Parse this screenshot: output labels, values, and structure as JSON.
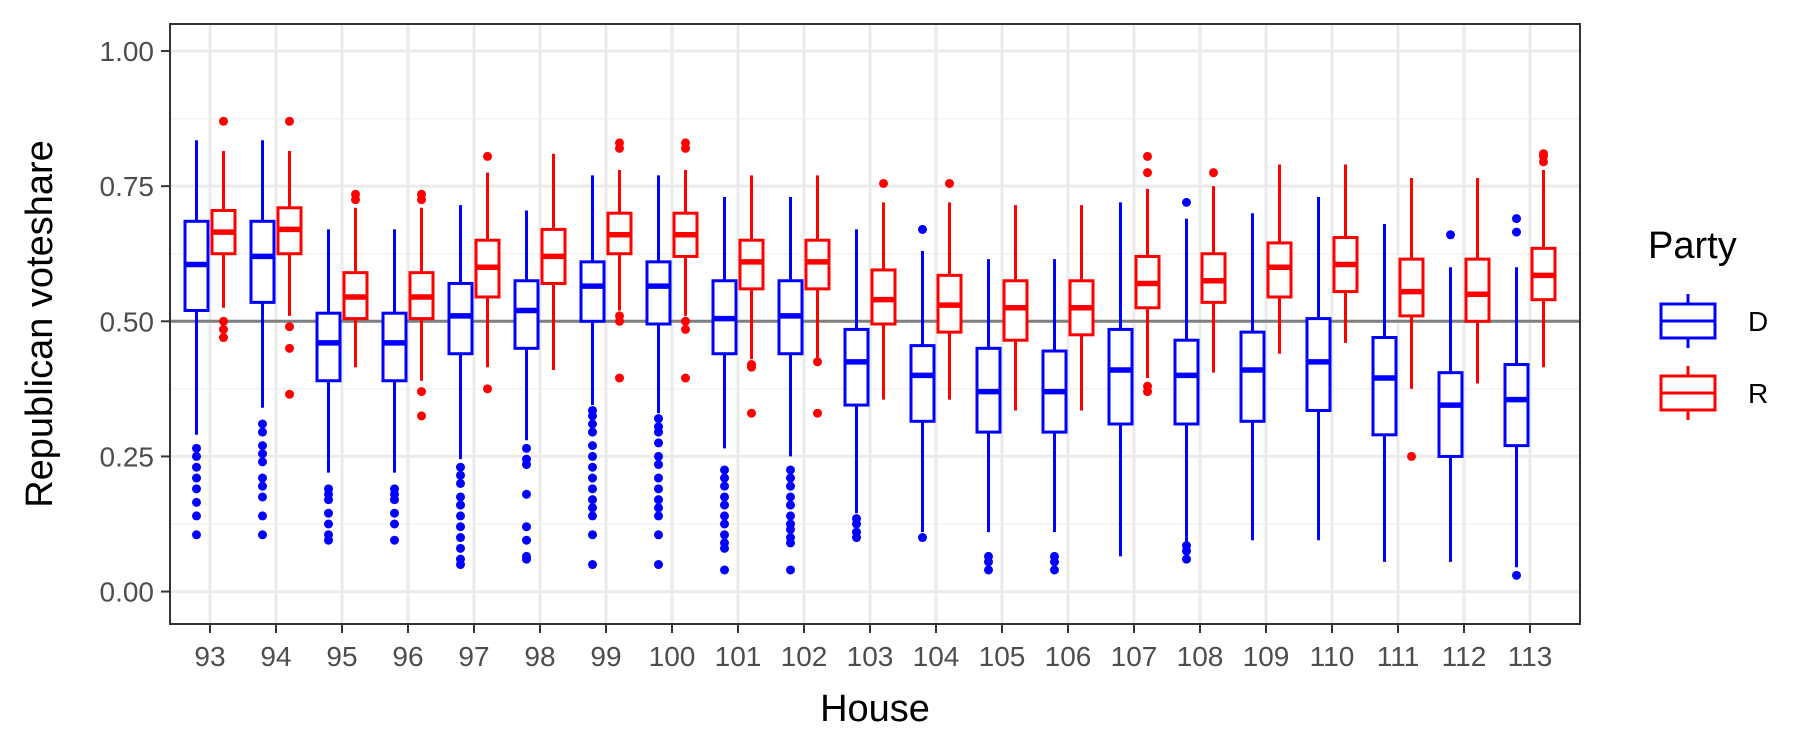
{
  "chart_data": {
    "type": "boxplot",
    "xlabel": "House",
    "ylabel": "Republican voteshare",
    "ylim": [
      -0.06,
      1.05
    ],
    "yticks": [
      "0.00",
      "0.25",
      "0.50",
      "0.75",
      "1.00"
    ],
    "reference_line": 0.5,
    "grid": true,
    "legend": {
      "title": "Party",
      "position": "right",
      "entries": [
        "D",
        "R"
      ]
    },
    "colors": {
      "D": "#0000ff",
      "R": "#ff0000",
      "reference_line": "#7f7f7f"
    },
    "categories": [
      "93",
      "94",
      "95",
      "96",
      "97",
      "98",
      "99",
      "100",
      "101",
      "102",
      "103",
      "104",
      "105",
      "106",
      "107",
      "108",
      "109",
      "110",
      "111",
      "112",
      "113"
    ],
    "series": [
      {
        "name": "D",
        "boxes": [
          {
            "q1": 0.52,
            "median": 0.605,
            "q3": 0.685,
            "lower": 0.29,
            "upper": 0.835,
            "outliers": [
              0.265,
              0.25,
              0.23,
              0.21,
              0.19,
              0.165,
              0.14,
              0.105
            ]
          },
          {
            "q1": 0.535,
            "median": 0.62,
            "q3": 0.685,
            "lower": 0.34,
            "upper": 0.835,
            "outliers": [
              0.31,
              0.295,
              0.27,
              0.255,
              0.24,
              0.21,
              0.195,
              0.175,
              0.14,
              0.105
            ]
          },
          {
            "q1": 0.39,
            "median": 0.46,
            "q3": 0.515,
            "lower": 0.22,
            "upper": 0.67,
            "outliers": [
              0.19,
              0.18,
              0.17,
              0.145,
              0.125,
              0.105,
              0.095
            ]
          },
          {
            "q1": 0.39,
            "median": 0.46,
            "q3": 0.515,
            "lower": 0.22,
            "upper": 0.67,
            "outliers": [
              0.19,
              0.18,
              0.17,
              0.145,
              0.125,
              0.095
            ]
          },
          {
            "q1": 0.44,
            "median": 0.51,
            "q3": 0.57,
            "lower": 0.245,
            "upper": 0.715,
            "outliers": [
              0.23,
              0.215,
              0.2,
              0.175,
              0.16,
              0.14,
              0.12,
              0.1,
              0.08,
              0.06,
              0.05
            ]
          },
          {
            "q1": 0.45,
            "median": 0.52,
            "q3": 0.575,
            "lower": 0.28,
            "upper": 0.705,
            "outliers": [
              0.265,
              0.245,
              0.235,
              0.18,
              0.12,
              0.095,
              0.065,
              0.06
            ]
          },
          {
            "q1": 0.5,
            "median": 0.565,
            "q3": 0.61,
            "lower": 0.345,
            "upper": 0.77,
            "outliers": [
              0.335,
              0.325,
              0.31,
              0.295,
              0.27,
              0.25,
              0.23,
              0.21,
              0.19,
              0.17,
              0.155,
              0.14,
              0.105,
              0.05
            ]
          },
          {
            "q1": 0.495,
            "median": 0.565,
            "q3": 0.61,
            "lower": 0.33,
            "upper": 0.77,
            "outliers": [
              0.32,
              0.305,
              0.295,
              0.275,
              0.25,
              0.235,
              0.21,
              0.19,
              0.17,
              0.155,
              0.14,
              0.105,
              0.05
            ]
          },
          {
            "q1": 0.44,
            "median": 0.505,
            "q3": 0.575,
            "lower": 0.265,
            "upper": 0.73,
            "outliers": [
              0.225,
              0.21,
              0.195,
              0.175,
              0.16,
              0.14,
              0.125,
              0.105,
              0.09,
              0.08,
              0.04
            ]
          },
          {
            "q1": 0.44,
            "median": 0.51,
            "q3": 0.575,
            "lower": 0.25,
            "upper": 0.73,
            "outliers": [
              0.225,
              0.21,
              0.195,
              0.175,
              0.16,
              0.14,
              0.125,
              0.115,
              0.1,
              0.09,
              0.04
            ]
          },
          {
            "q1": 0.345,
            "median": 0.425,
            "q3": 0.485,
            "lower": 0.145,
            "upper": 0.67,
            "outliers": [
              0.135,
              0.125,
              0.11,
              0.1
            ]
          },
          {
            "q1": 0.315,
            "median": 0.4,
            "q3": 0.455,
            "lower": 0.11,
            "upper": 0.63,
            "outliers": [
              0.67,
              0.1
            ]
          },
          {
            "q1": 0.295,
            "median": 0.37,
            "q3": 0.45,
            "lower": 0.11,
            "upper": 0.615,
            "outliers": [
              0.065,
              0.055,
              0.04
            ]
          },
          {
            "q1": 0.295,
            "median": 0.37,
            "q3": 0.445,
            "lower": 0.11,
            "upper": 0.615,
            "outliers": [
              0.065,
              0.055,
              0.04
            ]
          },
          {
            "q1": 0.31,
            "median": 0.41,
            "q3": 0.485,
            "lower": 0.065,
            "upper": 0.72,
            "outliers": []
          },
          {
            "q1": 0.31,
            "median": 0.4,
            "q3": 0.465,
            "lower": 0.09,
            "upper": 0.69,
            "outliers": [
              0.72,
              0.085,
              0.075,
              0.06
            ]
          },
          {
            "q1": 0.315,
            "median": 0.41,
            "q3": 0.48,
            "lower": 0.095,
            "upper": 0.7,
            "outliers": []
          },
          {
            "q1": 0.335,
            "median": 0.425,
            "q3": 0.505,
            "lower": 0.095,
            "upper": 0.73,
            "outliers": []
          },
          {
            "q1": 0.29,
            "median": 0.395,
            "q3": 0.47,
            "lower": 0.055,
            "upper": 0.68,
            "outliers": []
          },
          {
            "q1": 0.25,
            "median": 0.345,
            "q3": 0.405,
            "lower": 0.055,
            "upper": 0.6,
            "outliers": [
              0.66
            ]
          },
          {
            "q1": 0.27,
            "median": 0.355,
            "q3": 0.42,
            "lower": 0.045,
            "upper": 0.6,
            "outliers": [
              0.69,
              0.665,
              0.03
            ]
          }
        ]
      },
      {
        "name": "R",
        "boxes": [
          {
            "q1": 0.625,
            "median": 0.665,
            "q3": 0.705,
            "lower": 0.525,
            "upper": 0.815,
            "outliers": [
              0.87,
              0.5,
              0.485,
              0.47
            ]
          },
          {
            "q1": 0.625,
            "median": 0.67,
            "q3": 0.71,
            "lower": 0.51,
            "upper": 0.815,
            "outliers": [
              0.87,
              0.49,
              0.45,
              0.365
            ]
          },
          {
            "q1": 0.505,
            "median": 0.545,
            "q3": 0.59,
            "lower": 0.415,
            "upper": 0.71,
            "outliers": [
              0.735,
              0.725
            ]
          },
          {
            "q1": 0.505,
            "median": 0.545,
            "q3": 0.59,
            "lower": 0.39,
            "upper": 0.71,
            "outliers": [
              0.735,
              0.725,
              0.37,
              0.325
            ]
          },
          {
            "q1": 0.545,
            "median": 0.6,
            "q3": 0.65,
            "lower": 0.415,
            "upper": 0.775,
            "outliers": [
              0.805,
              0.375
            ]
          },
          {
            "q1": 0.57,
            "median": 0.62,
            "q3": 0.67,
            "lower": 0.41,
            "upper": 0.81,
            "outliers": []
          },
          {
            "q1": 0.625,
            "median": 0.66,
            "q3": 0.7,
            "lower": 0.52,
            "upper": 0.78,
            "outliers": [
              0.83,
              0.82,
              0.51,
              0.5,
              0.395
            ]
          },
          {
            "q1": 0.62,
            "median": 0.66,
            "q3": 0.7,
            "lower": 0.51,
            "upper": 0.78,
            "outliers": [
              0.83,
              0.82,
              0.5,
              0.485,
              0.395
            ]
          },
          {
            "q1": 0.56,
            "median": 0.61,
            "q3": 0.65,
            "lower": 0.43,
            "upper": 0.77,
            "outliers": [
              0.42,
              0.415,
              0.33
            ]
          },
          {
            "q1": 0.56,
            "median": 0.61,
            "q3": 0.65,
            "lower": 0.43,
            "upper": 0.77,
            "outliers": [
              0.425,
              0.33
            ]
          },
          {
            "q1": 0.495,
            "median": 0.54,
            "q3": 0.595,
            "lower": 0.355,
            "upper": 0.72,
            "outliers": [
              0.755
            ]
          },
          {
            "q1": 0.48,
            "median": 0.53,
            "q3": 0.585,
            "lower": 0.355,
            "upper": 0.72,
            "outliers": [
              0.755
            ]
          },
          {
            "q1": 0.465,
            "median": 0.525,
            "q3": 0.575,
            "lower": 0.335,
            "upper": 0.715,
            "outliers": []
          },
          {
            "q1": 0.475,
            "median": 0.525,
            "q3": 0.575,
            "lower": 0.335,
            "upper": 0.715,
            "outliers": []
          },
          {
            "q1": 0.525,
            "median": 0.57,
            "q3": 0.62,
            "lower": 0.395,
            "upper": 0.745,
            "outliers": [
              0.805,
              0.775,
              0.38,
              0.37
            ]
          },
          {
            "q1": 0.535,
            "median": 0.575,
            "q3": 0.625,
            "lower": 0.405,
            "upper": 0.75,
            "outliers": [
              0.775
            ]
          },
          {
            "q1": 0.545,
            "median": 0.6,
            "q3": 0.645,
            "lower": 0.44,
            "upper": 0.79,
            "outliers": []
          },
          {
            "q1": 0.555,
            "median": 0.605,
            "q3": 0.655,
            "lower": 0.46,
            "upper": 0.79,
            "outliers": []
          },
          {
            "q1": 0.51,
            "median": 0.555,
            "q3": 0.615,
            "lower": 0.375,
            "upper": 0.765,
            "outliers": [
              0.25
            ]
          },
          {
            "q1": 0.5,
            "median": 0.55,
            "q3": 0.615,
            "lower": 0.385,
            "upper": 0.765,
            "outliers": []
          },
          {
            "q1": 0.54,
            "median": 0.585,
            "q3": 0.635,
            "lower": 0.415,
            "upper": 0.78,
            "outliers": [
              0.81,
              0.805,
              0.795
            ]
          }
        ]
      }
    ]
  }
}
